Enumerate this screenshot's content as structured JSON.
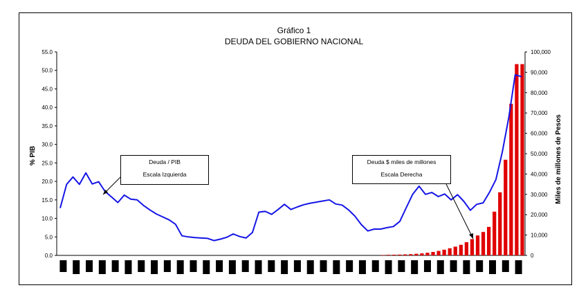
{
  "chart_data": {
    "type": "bar+line",
    "title": "Gráfico 1",
    "subtitle": "DEUDA DEL GOBIERNO NACIONAL",
    "y_left_label": "% PIB",
    "y_right_label": "Miles de millones de Pesos",
    "y_left_ticks": [
      "0.0",
      "5.0",
      "10.0",
      "15.0",
      "20.0",
      "25.0",
      "30.0",
      "35.0",
      "40.0",
      "45.0",
      "50.0",
      "55.0"
    ],
    "y_right_ticks": [
      "0",
      "10,000",
      "20,000",
      "30,000",
      "40,000",
      "50,000",
      "60,000",
      "70,000",
      "80,000",
      "90,000",
      "100,000"
    ],
    "ylim_left": [
      0,
      55
    ],
    "ylim_right": [
      0,
      100000
    ],
    "series": [
      {
        "name": "Deuda / PIB",
        "type": "line",
        "axis": "left",
        "color": "#1414e6",
        "values": [
          12.8,
          19.2,
          21.2,
          19.2,
          22.3,
          19.3,
          19.9,
          17.3,
          15.8,
          14.3,
          16.3,
          15.2,
          15.0,
          13.5,
          12.3,
          11.2,
          10.4,
          9.6,
          8.4,
          5.3,
          5.0,
          4.8,
          4.7,
          4.6,
          4.0,
          4.4,
          4.9,
          5.8,
          5.1,
          4.7,
          6.2,
          11.7,
          11.9,
          11.1,
          12.4,
          13.8,
          12.4,
          13.1,
          13.7,
          14.1,
          14.4,
          14.7,
          15.0,
          13.9,
          13.6,
          12.3,
          10.6,
          8.3,
          6.6,
          7.1,
          7.1,
          7.5,
          7.8,
          9.2,
          12.9,
          16.5,
          18.7,
          16.5,
          17.0,
          15.9,
          16.6,
          15.0,
          16.4,
          14.6,
          12.2,
          13.8,
          14.2,
          17.1,
          20.5,
          28.0,
          37.3,
          48.8,
          48.3
        ]
      },
      {
        "name": "Deuda $ miles de millones",
        "type": "bar",
        "axis": "right",
        "color": "#e00000",
        "values": [
          0,
          0,
          0,
          0,
          0,
          0,
          0,
          0,
          0,
          0,
          0,
          0,
          0,
          0,
          0,
          0,
          0,
          0,
          0,
          0,
          0,
          0,
          0,
          0,
          0,
          0,
          0,
          0,
          0,
          0,
          0,
          0,
          0,
          0,
          0,
          0,
          0,
          0,
          0,
          0,
          0,
          0,
          0,
          0,
          0,
          0,
          0,
          0,
          0,
          0,
          0,
          0,
          0,
          0,
          0,
          0,
          0,
          0,
          200,
          300,
          350,
          400,
          500,
          600,
          800,
          1000,
          1300,
          1700,
          2200,
          2800,
          3500,
          4300,
          5200,
          6500,
          8000,
          9800,
          11500,
          14000,
          21500,
          31000,
          47000,
          74500,
          94000,
          94000
        ]
      }
    ],
    "annotations": [
      {
        "line1": "Deuda / PIB",
        "line2": "Escala Izquierda"
      },
      {
        "line1": "Deuda $ miles de millones",
        "line2": "Escala Derecha"
      }
    ]
  }
}
